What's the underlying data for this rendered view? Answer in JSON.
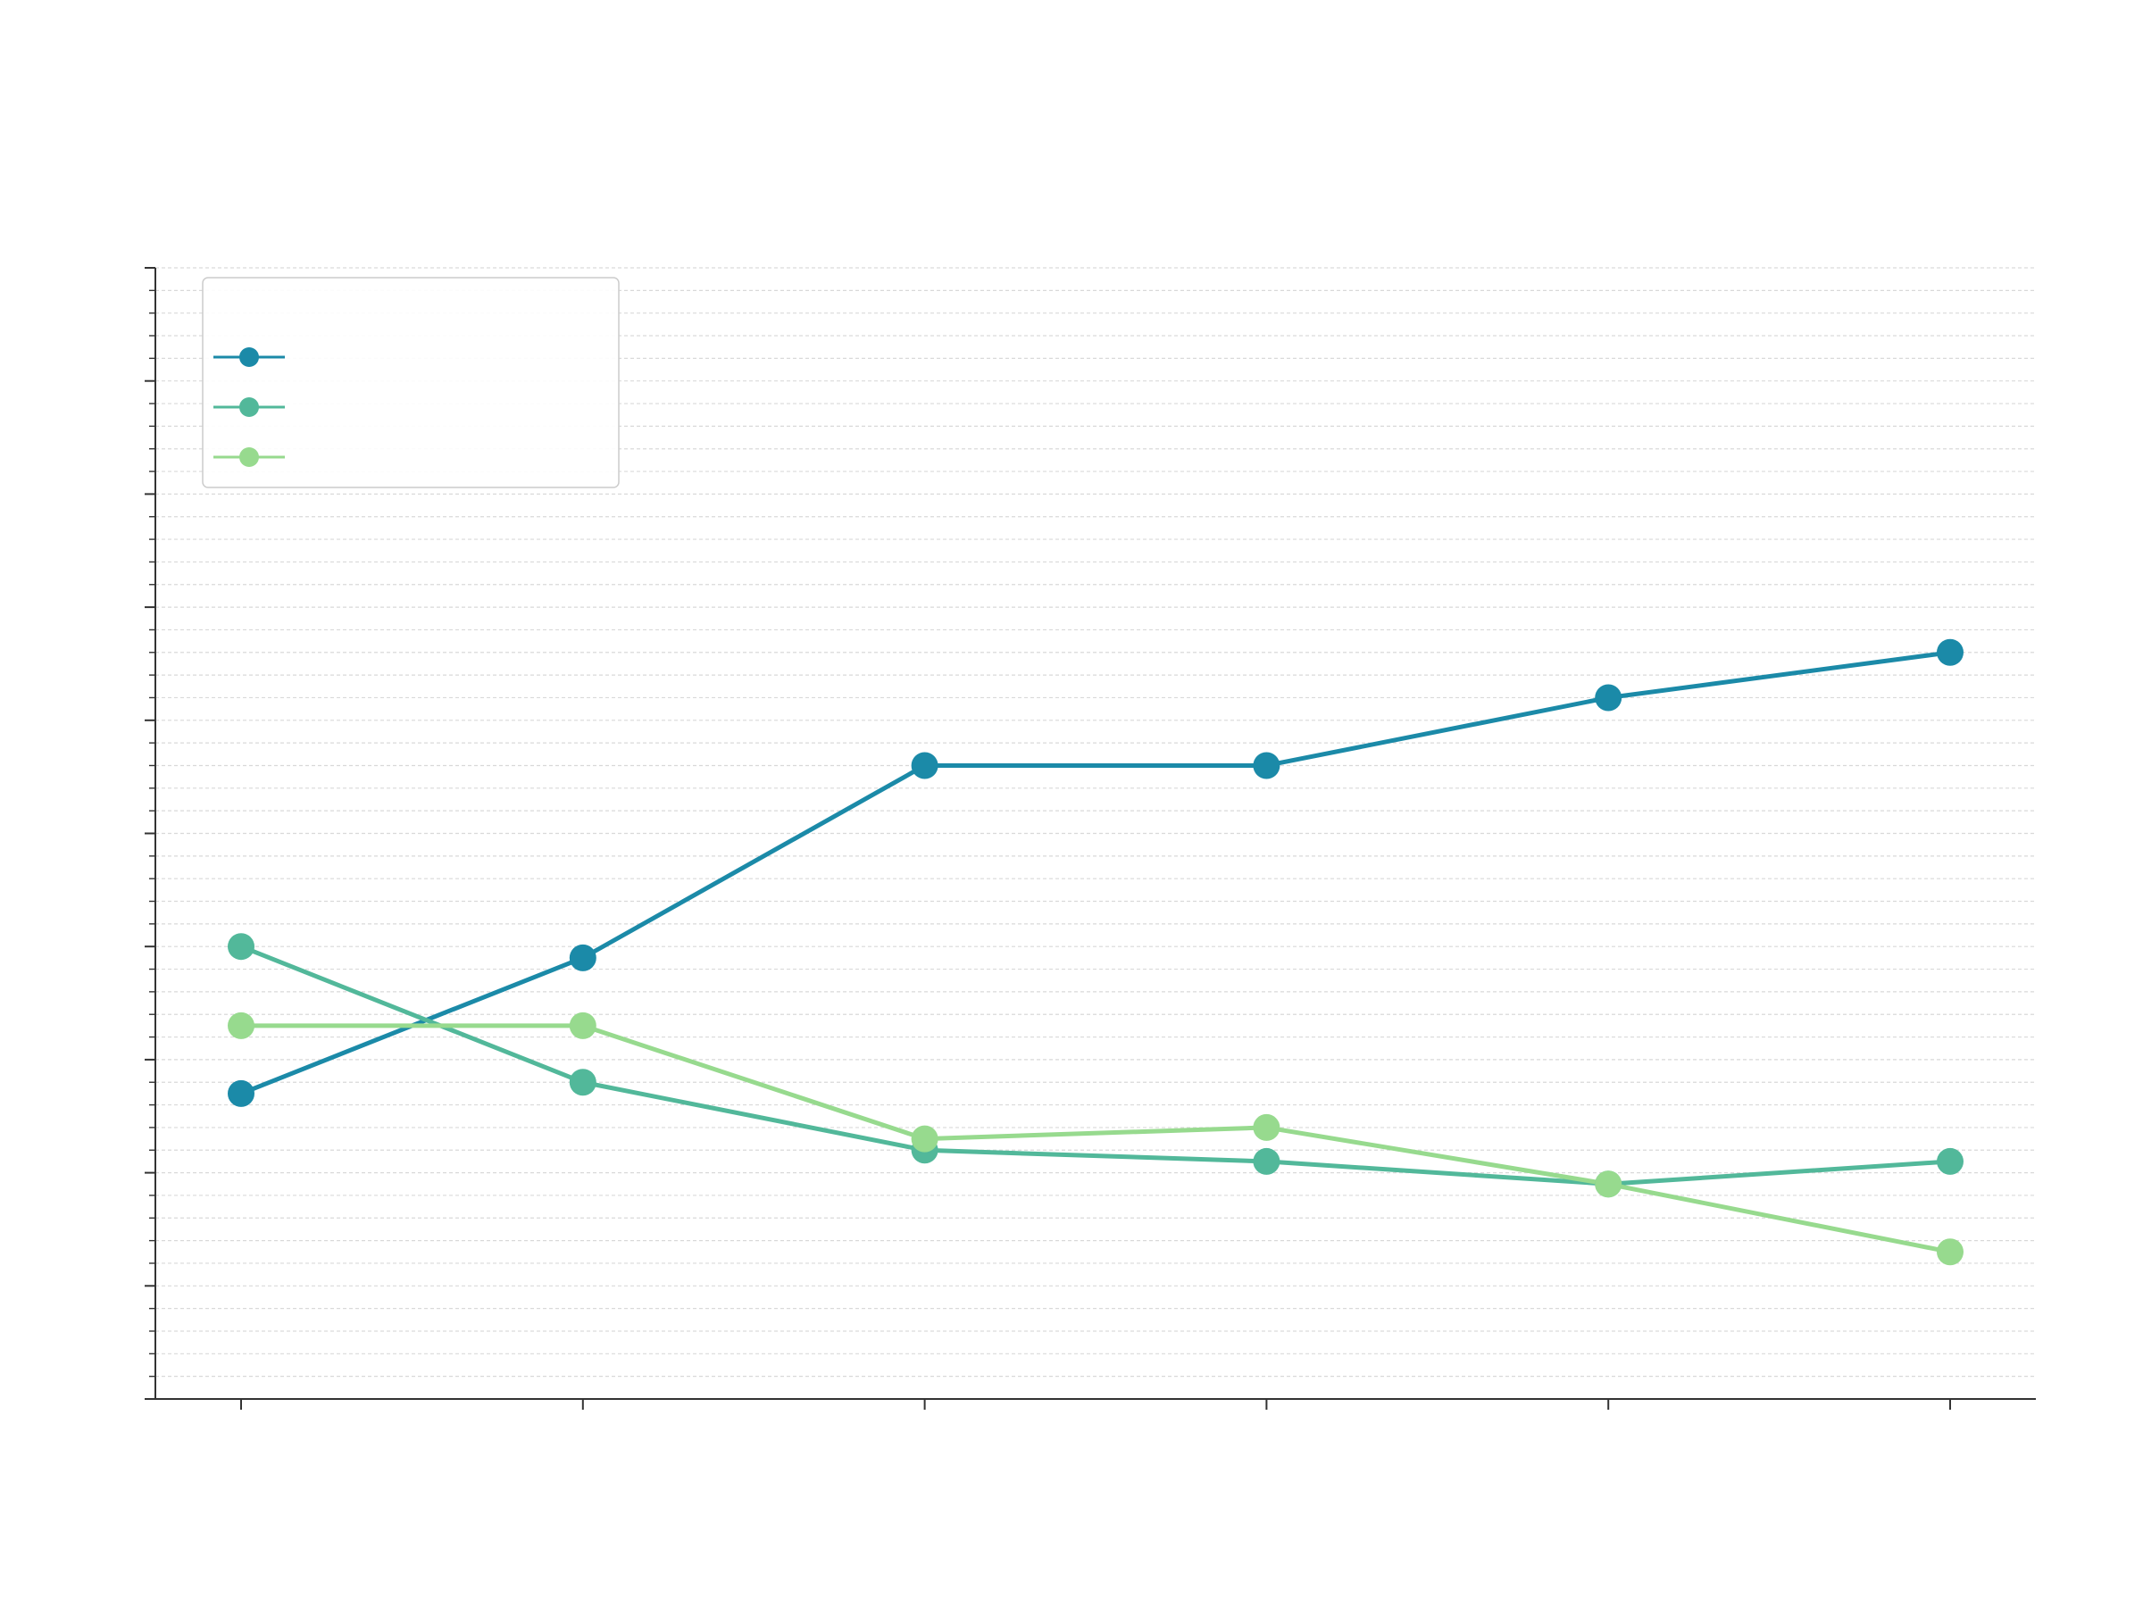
{
  "chart_data": {
    "type": "line",
    "title": "",
    "xlabel": "",
    "ylabel": "",
    "x_index": [
      0,
      1,
      2,
      3,
      4,
      5
    ],
    "ylim": [
      0,
      100
    ],
    "y_major_step": 10,
    "y_minor_step": 2,
    "grid": true,
    "legend_position": "top-left",
    "series": [
      {
        "color": "#1b8aa8",
        "values": [
          27,
          39,
          56,
          56,
          62,
          66
        ]
      },
      {
        "color": "#52b89a",
        "values": [
          40,
          28,
          22,
          21,
          19,
          21
        ]
      },
      {
        "color": "#97da8e",
        "values": [
          33,
          33,
          23,
          24,
          19,
          13
        ]
      }
    ]
  }
}
